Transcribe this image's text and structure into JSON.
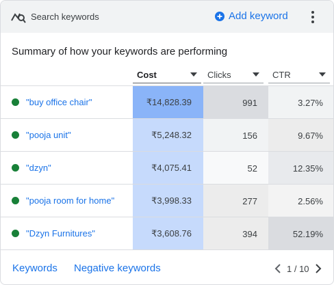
{
  "header": {
    "title": "Search keywords",
    "add_label": "Add keyword"
  },
  "summary": "Summary of how your keywords are performing",
  "columns": [
    {
      "label": "Cost"
    },
    {
      "label": "Clicks"
    },
    {
      "label": "CTR"
    }
  ],
  "rows": [
    {
      "keyword": "\"buy office chair\"",
      "cost": "₹14,828.39",
      "clicks": "991",
      "ctr": "3.27%"
    },
    {
      "keyword": "\"pooja unit\"",
      "cost": "₹5,248.32",
      "clicks": "156",
      "ctr": "9.67%"
    },
    {
      "keyword": "\"dzyn\"",
      "cost": "₹4,075.41",
      "clicks": "52",
      "ctr": "12.35%"
    },
    {
      "keyword": "\"pooja room for home\"",
      "cost": "₹3,998.33",
      "clicks": "277",
      "ctr": "2.56%"
    },
    {
      "keyword": "\"Dzyn Furnitures\"",
      "cost": "₹3,608.76",
      "clicks": "394",
      "ctr": "52.19%"
    }
  ],
  "footer": {
    "keywords_link": "Keywords",
    "negative_link": "Negative keywords",
    "page": "1 / 10"
  },
  "colors": {
    "accent": "#1a73e8",
    "status_dot": "#188038",
    "cost_heat": [
      "#8ab4f8",
      "#c6dafc",
      "#c6dafc",
      "#c6dafc",
      "#c6dafc"
    ],
    "clicks_heat": [
      "#dadce0",
      "#f1f3f4",
      "#f8f9fa",
      "#ececec",
      "#ececec"
    ],
    "ctr_heat": [
      "#f1f3f4",
      "#ececec",
      "#e8eaed",
      "#f3f3f3",
      "#dadce0"
    ]
  },
  "icons": {
    "header": "search-keywords-icon",
    "add": "add-circle-icon",
    "more": "more-vert-icon",
    "prev": "chevron-left-icon",
    "next": "chevron-right-icon"
  }
}
